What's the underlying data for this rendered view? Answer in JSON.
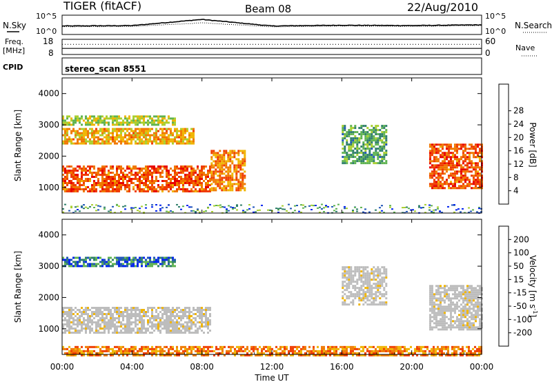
{
  "header": {
    "station": "TIGER (fitACF)",
    "beam": "Beam 08",
    "date": "22/Aug/2010"
  },
  "top_panels": {
    "nsky_label": "N.Sky",
    "nsearch_label": "N.Search",
    "freq_label_line1": "Freq.",
    "freq_label_line2": "[MHz]",
    "nave_label": "Nave",
    "cpid_label": "CPID",
    "noise_ticks": [
      "10^5",
      "10^0"
    ],
    "freq_ticks": [
      "18",
      "8"
    ],
    "nave_ticks": [
      "60",
      "0"
    ],
    "cpid_value": "stereo_scan 8551"
  },
  "colors": {
    "power_scale": [
      "#0022ee",
      "#1f55b8",
      "#2f7f6a",
      "#5fb350",
      "#a9cf2e",
      "#f0b400",
      "#f07800",
      "#f03c00",
      "#e80000"
    ],
    "velocity_scale": [
      "#0022ee",
      "#1f55b8",
      "#2f7f6a",
      "#5fb350",
      "#bdbdbd",
      "#f0b400",
      "#f07800",
      "#f03c00",
      "#e80000"
    ],
    "ground_scatter": "#bdbdbd"
  },
  "chart_data": [
    {
      "type": "line",
      "title": "N.Sky",
      "x": [
        "00:00",
        "04:00",
        "08:00",
        "12:00",
        "16:00",
        "20:00",
        "00:00"
      ],
      "series": [
        {
          "name": "N.Sky",
          "values": [
            2.2,
            2.3,
            3.9,
            2.2,
            2.4,
            2.3,
            2.5
          ]
        },
        {
          "name": "N.Search",
          "values": [
            2.0,
            2.1,
            3.0,
            2.0,
            2.2,
            2.1,
            2.3
          ]
        }
      ],
      "yscale": "log",
      "yticks": [
        "10^0",
        "10^5"
      ]
    },
    {
      "type": "line",
      "title": "Freq. / Nave",
      "xlabel": "",
      "ylabel": "Freq. [MHz]",
      "ylim_freq": [
        8,
        18
      ],
      "ylim_nave": [
        0,
        60
      ],
      "series": [
        {
          "name": "Freq.",
          "values": [
            12.0,
            12.0,
            12.0,
            12.0,
            12.0,
            12.0,
            12.0
          ]
        },
        {
          "name": "Nave",
          "values": [
            40,
            40,
            40,
            40,
            40,
            40,
            40
          ]
        }
      ]
    },
    {
      "type": "heatmap",
      "title": "Power",
      "xlabel": "",
      "ylabel": "Slant Range [km]",
      "xlim_hours": [
        0,
        24
      ],
      "ylim": [
        180,
        4500
      ],
      "yticks": [
        1000,
        2000,
        3000,
        4000
      ],
      "colorbar_label": "Power [dB]",
      "colorbar_ticks": [
        4,
        8,
        12,
        16,
        20,
        24,
        28
      ],
      "echo_regions": [
        {
          "start_hour": 0.0,
          "end_hour": 8.5,
          "range_km": [
            900,
            1700
          ],
          "power_db": 24
        },
        {
          "start_hour": 0.0,
          "end_hour": 7.5,
          "range_km": [
            2400,
            2900
          ],
          "power_db": 20
        },
        {
          "start_hour": 0.0,
          "end_hour": 6.5,
          "range_km": [
            3000,
            3300
          ],
          "power_db": 16
        },
        {
          "start_hour": 8.5,
          "end_hour": 10.5,
          "range_km": [
            900,
            2200
          ],
          "power_db": 22
        },
        {
          "start_hour": 16.0,
          "end_hour": 18.5,
          "range_km": [
            1800,
            3000
          ],
          "power_db": 12
        },
        {
          "start_hour": 21.0,
          "end_hour": 24.0,
          "range_km": [
            1000,
            2400
          ],
          "power_db": 24
        }
      ]
    },
    {
      "type": "heatmap",
      "title": "Velocity",
      "xlabel": "Time UT",
      "ylabel": "Slant Range [km]",
      "xlim_hours": [
        0,
        24
      ],
      "ylim": [
        180,
        4500
      ],
      "yticks": [
        1000,
        2000,
        3000,
        4000
      ],
      "xticks": [
        "00:00",
        "04:00",
        "08:00",
        "12:00",
        "16:00",
        "20:00",
        "00:00"
      ],
      "colorbar_label": "Velocity [m s^-1]",
      "colorbar_ticks": [
        200,
        100,
        50,
        15,
        -15,
        -50,
        -100,
        -200
      ],
      "echo_regions": [
        {
          "start_hour": 0.0,
          "end_hour": 8.5,
          "range_km": [
            900,
            1700
          ],
          "velocity": 0
        },
        {
          "start_hour": 0.0,
          "end_hour": 6.5,
          "range_km": [
            3000,
            3300
          ],
          "velocity": 80
        },
        {
          "start_hour": 16.0,
          "end_hour": 18.5,
          "range_km": [
            1800,
            3000
          ],
          "velocity": 0
        },
        {
          "start_hour": 21.0,
          "end_hour": 24.0,
          "range_km": [
            1000,
            2400
          ],
          "velocity": 0
        },
        {
          "start_hour": 0.0,
          "end_hour": 24.0,
          "range_km": [
            180,
            450
          ],
          "velocity": -60
        }
      ]
    }
  ],
  "axes": {
    "range_label": "Slant Range [km]",
    "power_label": "Power [dB]",
    "velocity_label_main": "Velocity [m s",
    "velocity_label_sup": "-1",
    "velocity_label_end": "]",
    "time_label": "Time UT",
    "xticks": [
      "00:00",
      "04:00",
      "08:00",
      "12:00",
      "16:00",
      "20:00",
      "00:00"
    ],
    "range_ticks": [
      "1000",
      "2000",
      "3000",
      "4000"
    ],
    "power_ticks": [
      "4",
      "8",
      "12",
      "16",
      "20",
      "24",
      "28"
    ],
    "velocity_ticks": [
      "200",
      "100",
      "50",
      "15",
      "-15",
      "-50",
      "-100",
      "-200"
    ]
  }
}
